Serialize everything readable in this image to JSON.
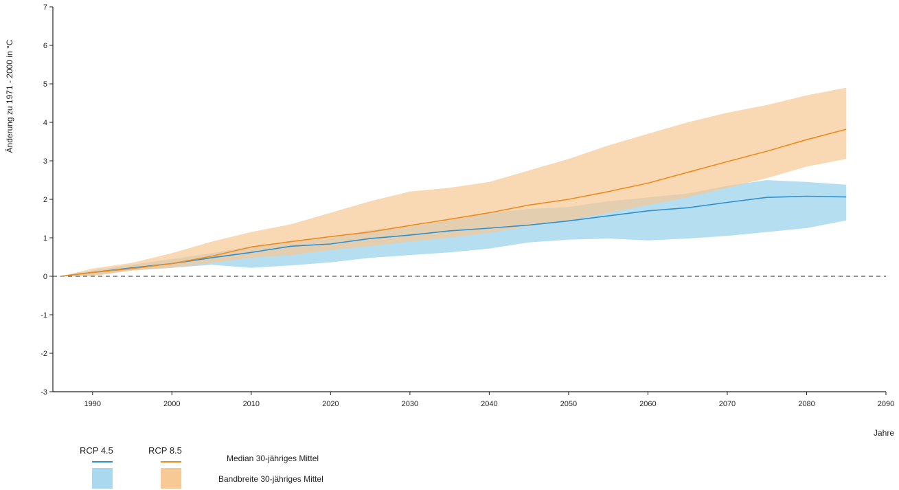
{
  "chart_data": {
    "type": "area",
    "xlabel": "Jahre",
    "ylabel": "Änderung zu 1971 - 2000 in °C",
    "xlim": [
      1985,
      2090
    ],
    "ylim": [
      -3,
      7
    ],
    "x_ticks": [
      1990,
      2000,
      2010,
      2020,
      2030,
      2040,
      2050,
      2060,
      2070,
      2080,
      2090
    ],
    "y_ticks": [
      -3,
      -2,
      -1,
      0,
      1,
      2,
      3,
      4,
      5,
      6,
      7
    ],
    "reference_line": 0,
    "x": [
      1986,
      1990,
      1995,
      2000,
      2005,
      2010,
      2015,
      2020,
      2025,
      2030,
      2035,
      2040,
      2045,
      2050,
      2055,
      2060,
      2065,
      2070,
      2075,
      2080,
      2085
    ],
    "series": [
      {
        "name": "RCP 4.5",
        "color": "#2f8fcf",
        "band_color": "#a9d8ef",
        "median": [
          0.0,
          0.1,
          0.22,
          0.33,
          0.48,
          0.62,
          0.78,
          0.84,
          0.98,
          1.07,
          1.18,
          1.25,
          1.33,
          1.44,
          1.57,
          1.7,
          1.78,
          1.92,
          2.05,
          2.08,
          2.06
        ],
        "lower": [
          0.0,
          0.02,
          0.15,
          0.22,
          0.3,
          0.22,
          0.28,
          0.36,
          0.48,
          0.55,
          0.62,
          0.72,
          0.88,
          0.95,
          0.98,
          0.93,
          0.98,
          1.05,
          1.15,
          1.25,
          1.45
        ],
        "upper": [
          0.0,
          0.15,
          0.3,
          0.45,
          0.6,
          0.78,
          0.9,
          1.0,
          1.2,
          1.3,
          1.45,
          1.65,
          1.75,
          1.8,
          1.95,
          2.05,
          2.15,
          2.35,
          2.5,
          2.45,
          2.38
        ]
      },
      {
        "name": "RCP 8.5",
        "color": "#f08a1c",
        "band_color": "#f7c994",
        "median": [
          0.0,
          0.1,
          0.2,
          0.33,
          0.52,
          0.76,
          0.9,
          1.03,
          1.15,
          1.32,
          1.48,
          1.65,
          1.85,
          2.0,
          2.2,
          2.42,
          2.7,
          2.98,
          3.25,
          3.55,
          3.82
        ],
        "lower": [
          0.0,
          0.0,
          0.15,
          0.22,
          0.35,
          0.48,
          0.55,
          0.68,
          0.78,
          0.9,
          1.0,
          1.13,
          1.3,
          1.45,
          1.65,
          1.85,
          2.05,
          2.3,
          2.55,
          2.85,
          3.05
        ],
        "upper": [
          0.0,
          0.2,
          0.35,
          0.6,
          0.9,
          1.15,
          1.35,
          1.65,
          1.95,
          2.2,
          2.3,
          2.45,
          2.75,
          3.05,
          3.4,
          3.7,
          4.0,
          4.25,
          4.45,
          4.7,
          4.9
        ]
      }
    ]
  },
  "legend": {
    "rcp45_label": "RCP 4.5",
    "rcp85_label": "RCP 8.5",
    "median_desc": "Median 30-jähriges Mittel",
    "band_desc": "Bandbreite 30-jähriges Mittel",
    "rcp45_color": "#2f8fcf",
    "rcp45_band_color": "#a9d8ef",
    "rcp85_color": "#f08a1c",
    "rcp85_band_color": "#f7c994"
  }
}
